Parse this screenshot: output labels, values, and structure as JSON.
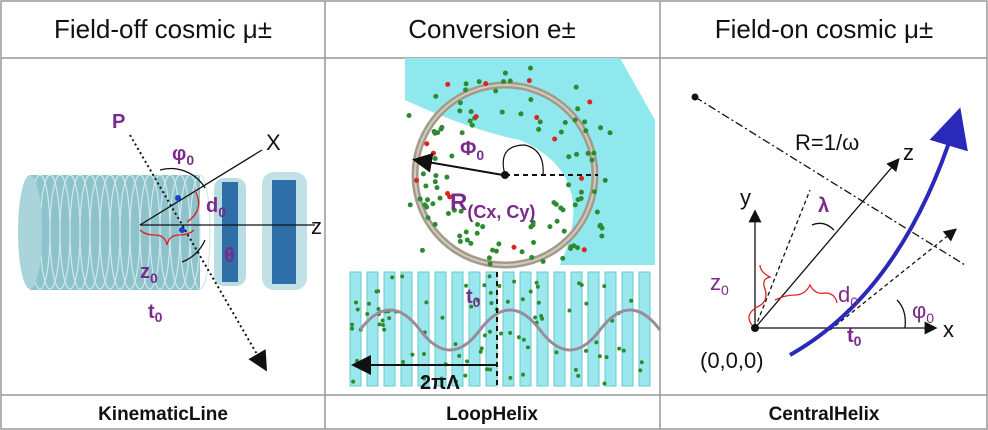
{
  "header": {
    "columns": [
      "Field-off cosmic μ±",
      "Conversion e±",
      "Field-on cosmic μ±"
    ]
  },
  "panels": [
    {
      "labels": [
        {
          "text": "P"
        },
        {
          "text": "φ",
          "sub": "0"
        },
        {
          "text": "X"
        },
        {
          "text": "d",
          "sub": "0"
        },
        {
          "text": "z"
        },
        {
          "text": "z",
          "sub": "0"
        },
        {
          "text": "θ"
        },
        {
          "text": "t",
          "sub": "0"
        }
      ]
    },
    {
      "labels": [
        {
          "text": "Φ",
          "sub": "0"
        },
        {
          "text": "R",
          "sub": "(Cx, Cy)"
        },
        {
          "text": "t",
          "sub": "0"
        },
        {
          "text": "2πΛ"
        }
      ]
    },
    {
      "labels": [
        {
          "text": "R=1/ω"
        },
        {
          "text": "z"
        },
        {
          "text": "y"
        },
        {
          "text": "λ"
        },
        {
          "text": "z",
          "sub": "0"
        },
        {
          "text": "d",
          "sub": "0"
        },
        {
          "text": "φ",
          "sub": "0"
        },
        {
          "text": "x"
        },
        {
          "text": "t",
          "sub": "0"
        },
        {
          "text": "(0,0,0)"
        }
      ]
    }
  ],
  "footer": {
    "columns": [
      "KinematicLine",
      "LoopHelix",
      "CentralHelix"
    ]
  }
}
